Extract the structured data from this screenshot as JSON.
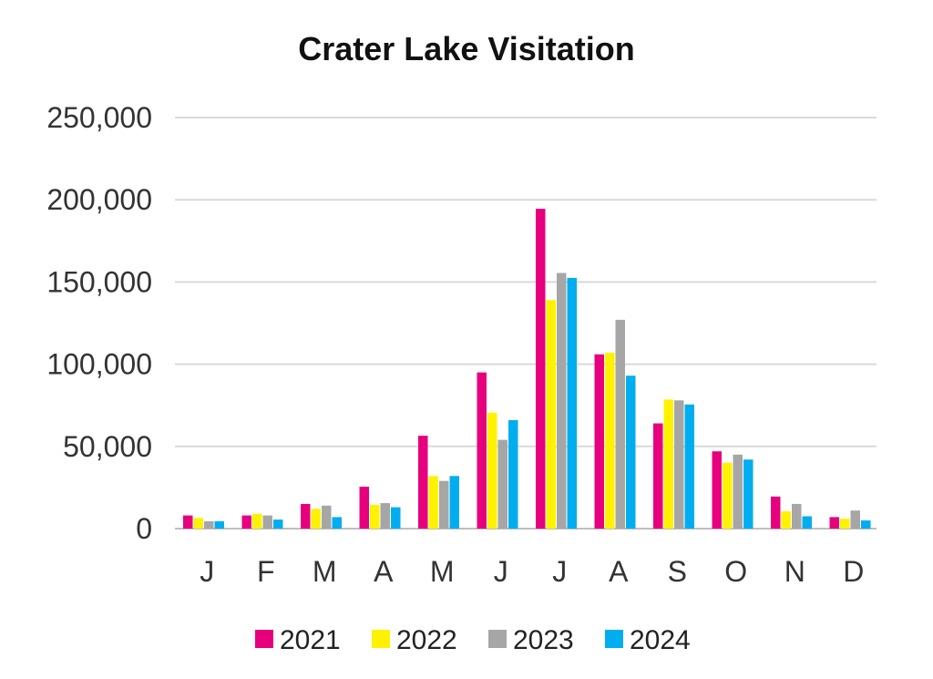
{
  "chart_data": {
    "type": "bar",
    "title": "Crater Lake Visitation",
    "xlabel": "",
    "ylabel": "",
    "categories": [
      "J",
      "F",
      "M",
      "A",
      "M",
      "J",
      "J",
      "A",
      "S",
      "O",
      "N",
      "D"
    ],
    "ylim": [
      0,
      250000
    ],
    "yticks": [
      {
        "value": 0,
        "label": "0"
      },
      {
        "value": 50000,
        "label": "50,000"
      },
      {
        "value": 100000,
        "label": "100,000"
      },
      {
        "value": 150000,
        "label": "150,000"
      },
      {
        "value": 200000,
        "label": "200,000"
      },
      {
        "value": 250000,
        "label": "250,000"
      }
    ],
    "grid": true,
    "legend_position": "bottom",
    "series": [
      {
        "name": "2021",
        "color": "#e6007e",
        "values": [
          8000,
          8000,
          15000,
          25500,
          56500,
          95000,
          194500,
          106000,
          64000,
          47000,
          19500,
          7000
        ]
      },
      {
        "name": "2022",
        "color": "#fff200",
        "values": [
          6500,
          9000,
          12000,
          14500,
          32000,
          70500,
          139000,
          107000,
          78500,
          40000,
          10500,
          6000
        ]
      },
      {
        "name": "2023",
        "color": "#a6a6a6",
        "values": [
          4500,
          8000,
          14000,
          15500,
          29000,
          54000,
          155500,
          127000,
          78000,
          45000,
          15000,
          11000
        ]
      },
      {
        "name": "2024",
        "color": "#00aeef",
        "values": [
          4500,
          5500,
          7000,
          13000,
          32000,
          66000,
          152500,
          93000,
          75500,
          42000,
          7500,
          5000
        ]
      }
    ]
  }
}
